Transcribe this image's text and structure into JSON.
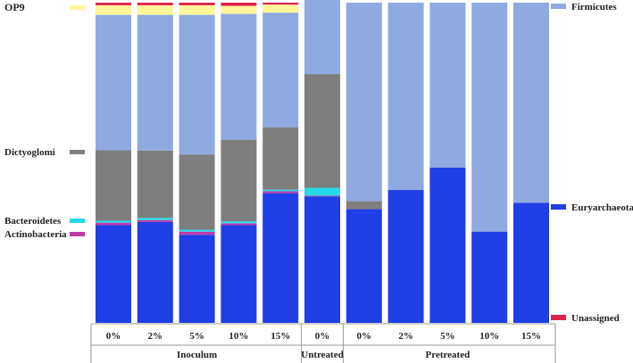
{
  "chart_data": {
    "type": "bar",
    "stacked": true,
    "normalized_percent": true,
    "categories": [
      "0%",
      "2%",
      "5%",
      "10%",
      "15%",
      "0%",
      "0%",
      "2%",
      "5%",
      "10%",
      "15%"
    ],
    "groups": [
      {
        "label": "Inoculum",
        "count": 5
      },
      {
        "label": "Untreated",
        "count": 1
      },
      {
        "label": "Pretreated",
        "count": 5
      }
    ],
    "ylim": [
      0,
      100
    ],
    "series": [
      {
        "name": "Euryarchaeota",
        "color": "#1f3ee6",
        "values": [
          30.5,
          31.5,
          27.5,
          30.5,
          40.5,
          39.5,
          35.5,
          41.5,
          48.5,
          28.5,
          37.5
        ]
      },
      {
        "name": "Actinobacteria",
        "color": "#c03aa8",
        "values": [
          0.8,
          0.6,
          1.0,
          0.6,
          0.6,
          0.2,
          0,
          0,
          0,
          0,
          0
        ]
      },
      {
        "name": "Bacteroidetes",
        "color": "#27d9e8",
        "values": [
          0.6,
          0.7,
          0.6,
          0.6,
          0.5,
          2.5,
          0,
          0,
          0,
          0,
          0
        ]
      },
      {
        "name": "Dictyoglomi",
        "color": "#7e7e7e",
        "values": [
          22.0,
          21.0,
          23.5,
          25.5,
          19.5,
          35.5,
          2.5,
          0,
          0,
          0,
          0
        ]
      },
      {
        "name": "Firmicutes",
        "color": "#8eaae0",
        "values": [
          42.3,
          42.4,
          43.6,
          39.3,
          35.8,
          24.8,
          62.0,
          58.5,
          51.5,
          71.5,
          62.5
        ]
      },
      {
        "name": "OP9",
        "color": "#fff59a",
        "values": [
          3.0,
          3.0,
          3.0,
          2.5,
          2.5,
          1.3,
          0,
          0,
          0,
          0,
          0
        ]
      },
      {
        "name": "Unassigned",
        "color": "#e0214c",
        "values": [
          0.8,
          0.8,
          0.8,
          1.0,
          0.6,
          0.2,
          0,
          0,
          0,
          0,
          0
        ]
      }
    ],
    "legend": {
      "left": [
        "OP9",
        "Dictyoglomi",
        "Bacteroidetes",
        "Actinobacteria"
      ],
      "right": [
        "Firmicutes",
        "Euryarchaeota",
        "Unassigned"
      ]
    }
  }
}
